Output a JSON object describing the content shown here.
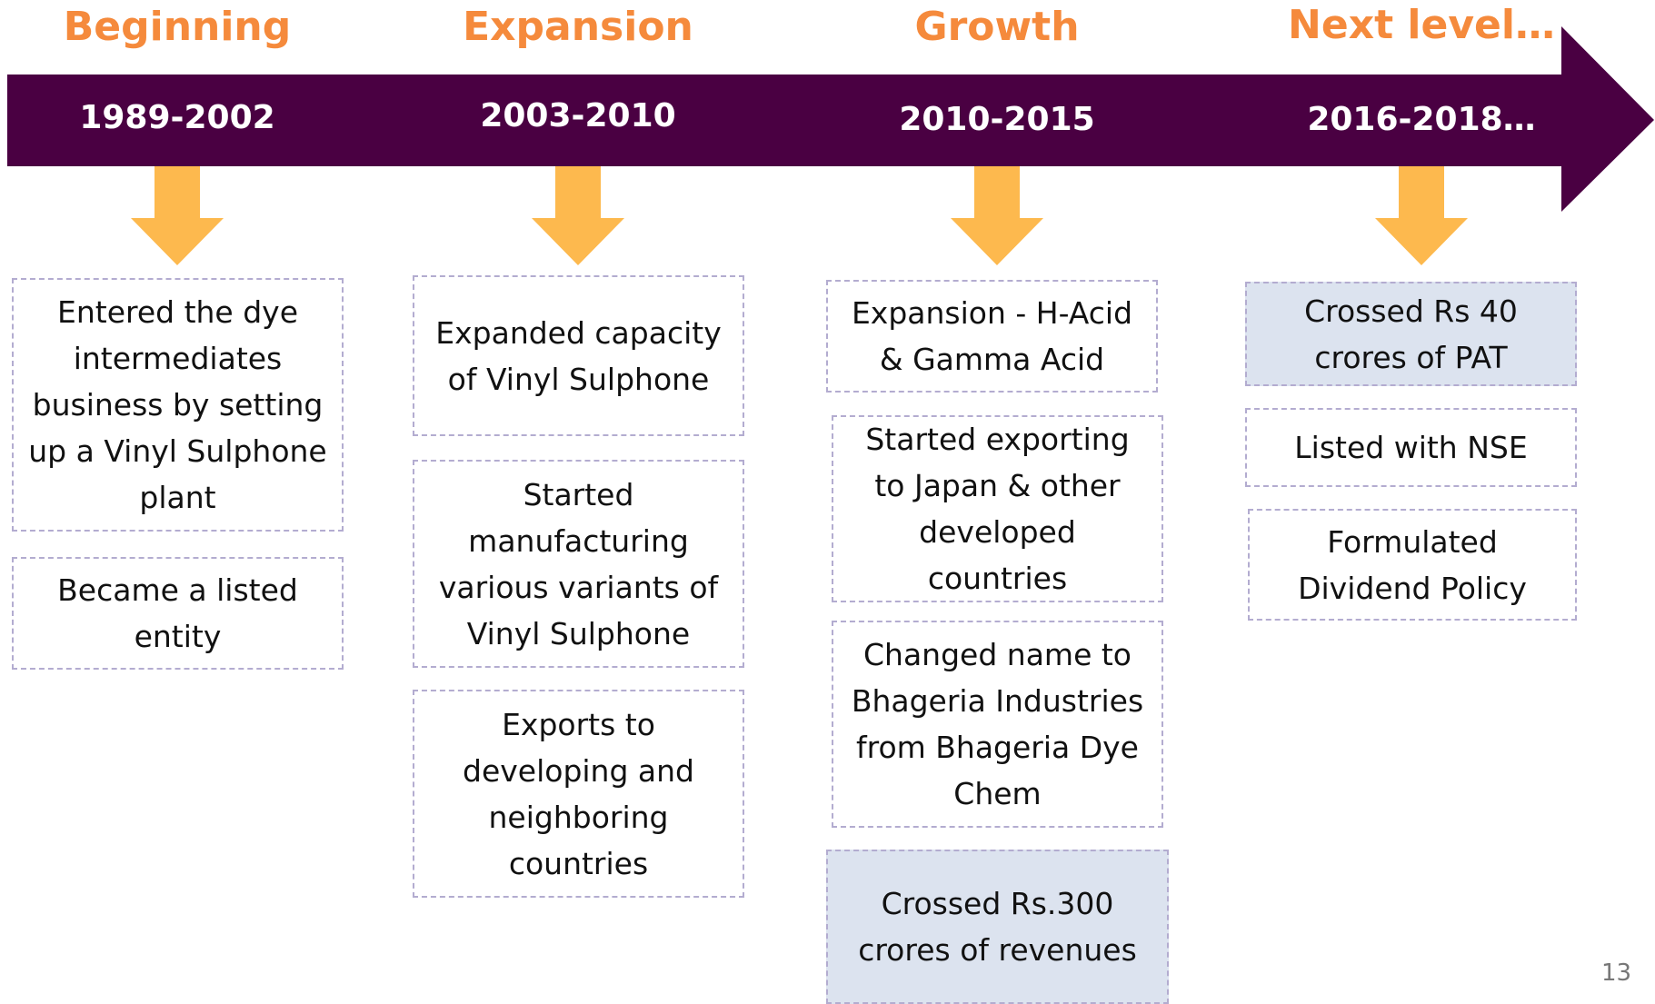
{
  "phases": [
    {
      "title": "Beginning",
      "years": "1989-2002",
      "items": [
        "Entered the dye intermediates business by setting up a Vinyl Sulphone plant",
        "Became a listed entity"
      ]
    },
    {
      "title": "Expansion",
      "years": "2003-2010",
      "items": [
        "Expanded capacity of Vinyl Sulphone",
        "Started manufacturing various variants of Vinyl Sulphone",
        "Exports to developing and neighboring countries"
      ]
    },
    {
      "title": "Growth",
      "years": "2010-2015",
      "items": [
        "Expansion - H-Acid & Gamma Acid",
        "Started exporting to Japan & other developed countries",
        "Changed name to Bhageria Industries from Bhageria Dye Chem",
        "Crossed Rs.300 crores of revenues"
      ]
    },
    {
      "title": "Next level…",
      "years": "2016-2018…",
      "items": [
        "Crossed Rs 40 crores of PAT",
        "Listed with NSE",
        "Formulated Dividend Policy"
      ]
    }
  ],
  "page_number": "13"
}
